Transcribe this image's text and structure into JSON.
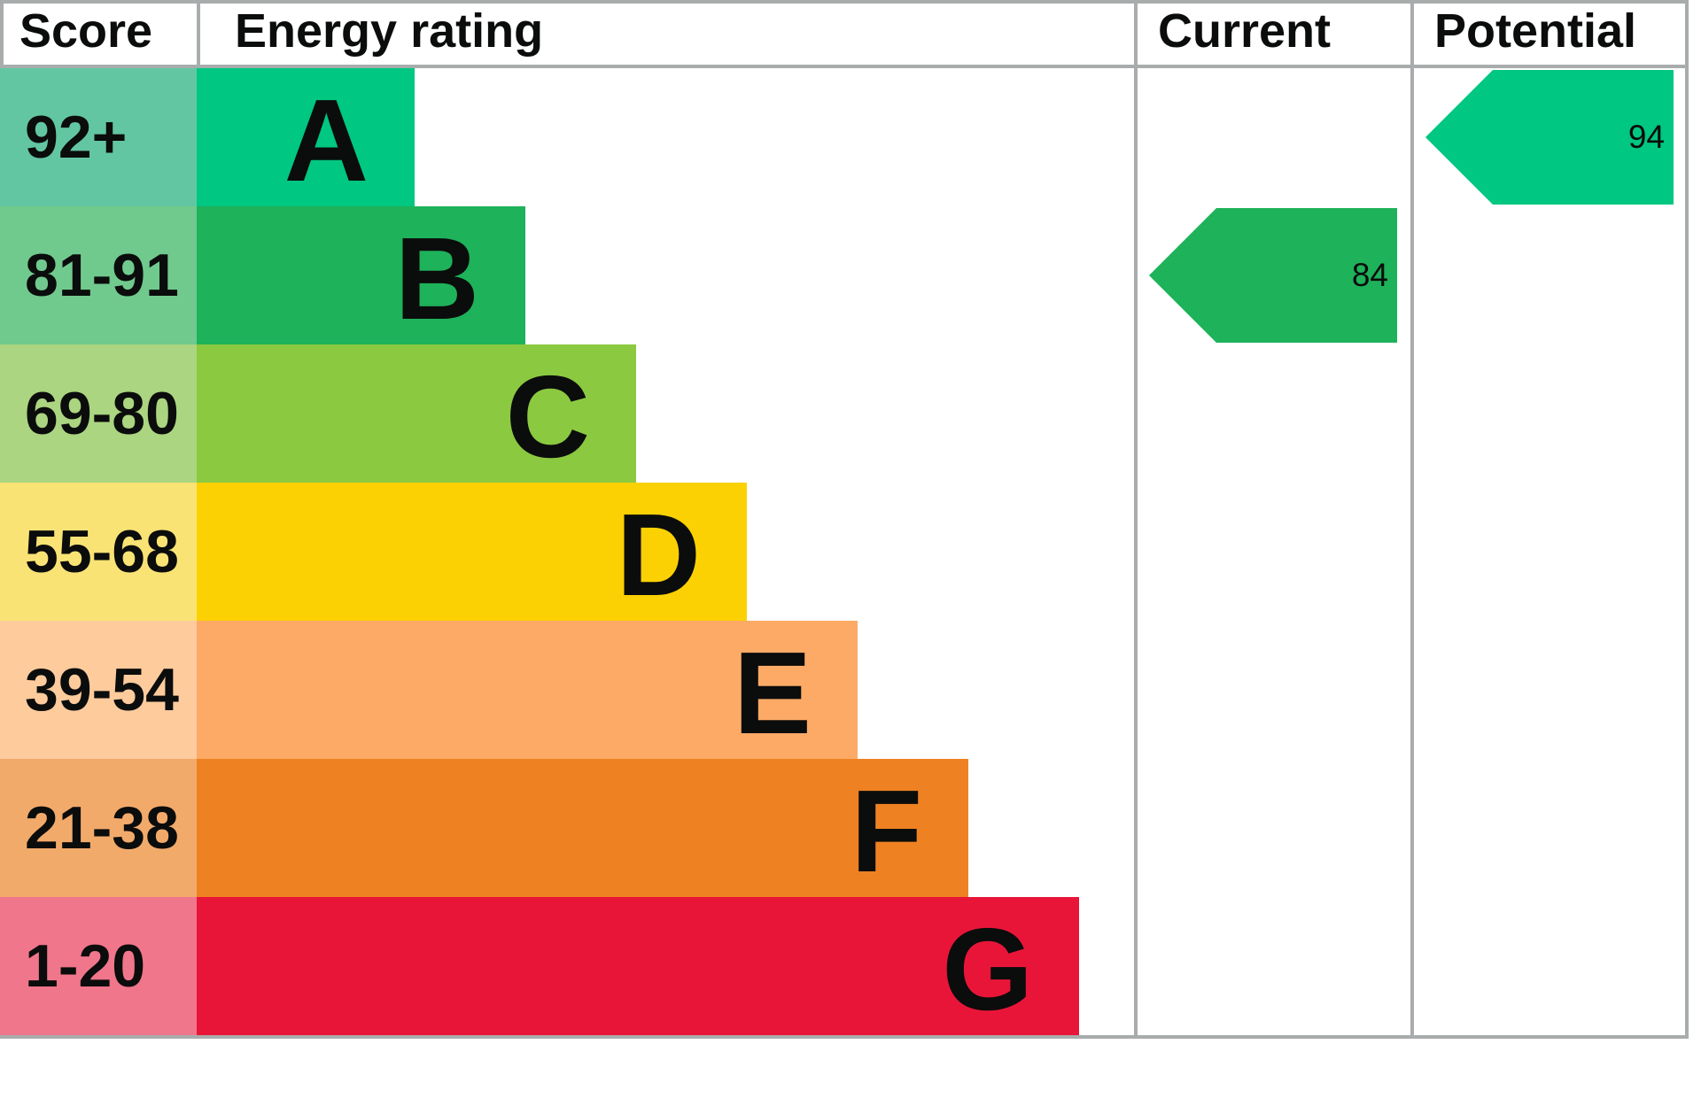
{
  "header": {
    "score": "Score",
    "energy_rating": "Energy rating",
    "current": "Current",
    "potential": "Potential"
  },
  "rows": [
    {
      "score": "92+",
      "letter": "A",
      "band_color": "#00c781",
      "score_bg": "#63c6a3"
    },
    {
      "score": "81-91",
      "letter": "B",
      "band_color": "#1eb25a",
      "score_bg": "#70ca8d"
    },
    {
      "score": "69-80",
      "letter": "C",
      "band_color": "#8bc940",
      "score_bg": "#abd580"
    },
    {
      "score": "55-68",
      "letter": "D",
      "band_color": "#fbd103",
      "score_bg": "#fae375"
    },
    {
      "score": "39-54",
      "letter": "E",
      "band_color": "#fcaa66",
      "score_bg": "#fdcb9c"
    },
    {
      "score": "21-38",
      "letter": "F",
      "band_color": "#ee8122",
      "score_bg": "#f2aa6b"
    },
    {
      "score": "1-20",
      "letter": "G",
      "band_color": "#e91539",
      "score_bg": "#f0768b"
    }
  ],
  "current": {
    "value": "84",
    "band": "B",
    "color": "#1eb25a"
  },
  "potential": {
    "value": "94",
    "band": "A",
    "color": "#00c781"
  },
  "border_color": "#a9acac",
  "text_color": "#0b0c0c",
  "chart_data": {
    "type": "bar",
    "title": "Energy rating",
    "columns": [
      "Score",
      "Energy rating",
      "Current",
      "Potential"
    ],
    "categories": [
      "A",
      "B",
      "C",
      "D",
      "E",
      "F",
      "G"
    ],
    "score_ranges": [
      "92+",
      "81-91",
      "69-80",
      "55-68",
      "39-54",
      "21-38",
      "1-20"
    ],
    "bar_relative_lengths": [
      1,
      1.51,
      2.02,
      2.52,
      3.03,
      3.54,
      4.05
    ],
    "band_colors": [
      "#00c781",
      "#1eb25a",
      "#8bc940",
      "#fbd103",
      "#fcaa66",
      "#ee8122",
      "#e91539"
    ],
    "current": {
      "value": 84,
      "band": "B"
    },
    "potential": {
      "value": 94,
      "band": "A"
    },
    "grid": false,
    "legend_position": "none"
  }
}
